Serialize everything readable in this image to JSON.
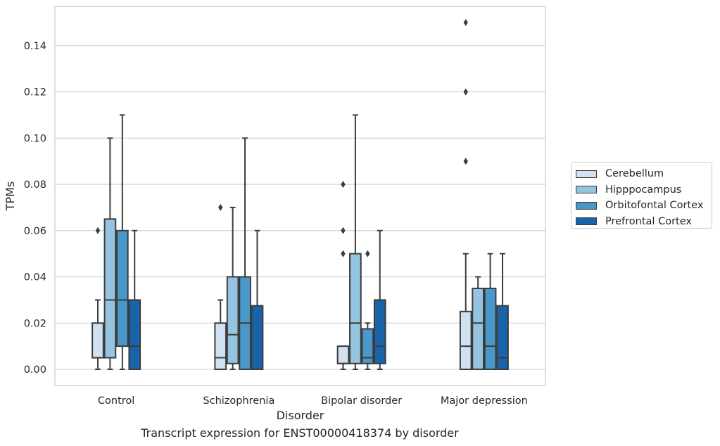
{
  "chart_data": {
    "type": "box",
    "xlabel": "Disorder",
    "ylabel": "TPMs",
    "caption": "Transcript expression for ENST00000418374 by disorder",
    "categories": [
      "Control",
      "Schizophrenia",
      "Bipolar disorder",
      "Major depression"
    ],
    "ylim": [
      -0.007,
      0.157
    ],
    "yticks": [
      0.0,
      0.02,
      0.04,
      0.06,
      0.08,
      0.1,
      0.12,
      0.14
    ],
    "ytick_labels": [
      "0.00",
      "0.02",
      "0.04",
      "0.06",
      "0.08",
      "0.10",
      "0.12",
      "0.14"
    ],
    "grid": "horizontal",
    "legend_position": "right",
    "series": [
      {
        "name": "Cerebellum",
        "color": "#d0e1f2",
        "boxes": [
          {
            "whislo": 0.0,
            "q1": 0.005,
            "med": 0.005,
            "q3": 0.02,
            "whishi": 0.03,
            "fliers": [
              0.06
            ]
          },
          {
            "whislo": 0.0,
            "q1": 0.0,
            "med": 0.005,
            "q3": 0.02,
            "whishi": 0.03,
            "fliers": [
              0.07
            ]
          },
          {
            "whislo": 0.0,
            "q1": 0.0025,
            "med": 0.0025,
            "q3": 0.01,
            "whishi": 0.01,
            "fliers": [
              0.05,
              0.06,
              0.08
            ]
          },
          {
            "whislo": 0.0,
            "q1": 0.0,
            "med": 0.01,
            "q3": 0.025,
            "whishi": 0.05,
            "fliers": [
              0.09,
              0.12,
              0.15
            ]
          }
        ]
      },
      {
        "name": "Hipppocampus",
        "color": "#94c4df",
        "boxes": [
          {
            "whislo": 0.0,
            "q1": 0.005,
            "med": 0.03,
            "q3": 0.065,
            "whishi": 0.1,
            "fliers": []
          },
          {
            "whislo": 0.0,
            "q1": 0.0025,
            "med": 0.015,
            "q3": 0.04,
            "whishi": 0.07,
            "fliers": []
          },
          {
            "whislo": 0.0,
            "q1": 0.0025,
            "med": 0.02,
            "q3": 0.05,
            "whishi": 0.11,
            "fliers": []
          },
          {
            "whislo": 0.0,
            "q1": 0.0,
            "med": 0.02,
            "q3": 0.035,
            "whishi": 0.04,
            "fliers": []
          }
        ]
      },
      {
        "name": "Orbitofontal Cortex",
        "color": "#4a98c9",
        "boxes": [
          {
            "whislo": 0.0,
            "q1": 0.01,
            "med": 0.03,
            "q3": 0.06,
            "whishi": 0.11,
            "fliers": []
          },
          {
            "whislo": 0.0,
            "q1": 0.0,
            "med": 0.02,
            "q3": 0.04,
            "whishi": 0.1,
            "fliers": []
          },
          {
            "whislo": 0.0,
            "q1": 0.0025,
            "med": 0.005,
            "q3": 0.0175,
            "whishi": 0.02,
            "fliers": [
              0.05
            ]
          },
          {
            "whislo": 0.0,
            "q1": 0.0,
            "med": 0.01,
            "q3": 0.035,
            "whishi": 0.05,
            "fliers": []
          }
        ]
      },
      {
        "name": "Prefrontal Cortex",
        "color": "#1764ab",
        "boxes": [
          {
            "whislo": 0.0,
            "q1": 0.0,
            "med": 0.01,
            "q3": 0.03,
            "whishi": 0.06,
            "fliers": []
          },
          {
            "whislo": 0.0,
            "q1": 0.0,
            "med": 0.0,
            "q3": 0.0275,
            "whishi": 0.06,
            "fliers": []
          },
          {
            "whislo": 0.0,
            "q1": 0.0025,
            "med": 0.01,
            "q3": 0.03,
            "whishi": 0.06,
            "fliers": []
          },
          {
            "whislo": 0.0,
            "q1": 0.0,
            "med": 0.005,
            "q3": 0.0275,
            "whishi": 0.05,
            "fliers": []
          }
        ]
      }
    ]
  }
}
